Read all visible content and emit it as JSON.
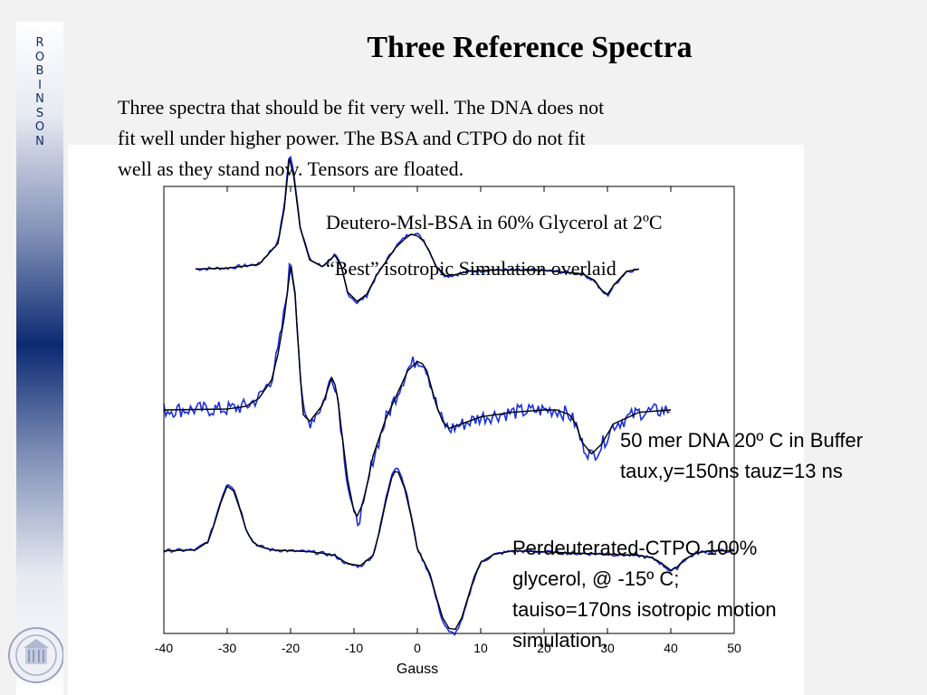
{
  "slide": {
    "title": "Three Reference Spectra",
    "side_letters": [
      "R",
      "O",
      "B",
      "I",
      "N",
      "S",
      "O",
      "N"
    ],
    "body_lines": [
      "Three spectra that should be fit very well.  The DNA does not",
      "fit well under higher power.  The BSA and CTPO do not fit",
      "well as they stand now.  Tensors are floated."
    ]
  },
  "annotations": {
    "bsa_line1": "Deutero-Msl-BSA in 60% Glycerol at 2ºC",
    "bsa_line2": "“Best” isotropic Simulation overlaid",
    "dna_line1": "50 mer DNA 20º C in Buffer",
    "dna_line2": "taux,y=150ns tauz=13 ns",
    "ctpo_line1": "Perdeuterated-CTPO 100%",
    "ctpo_line2": "glycerol,   @ -15º C;",
    "ctpo_line3": "tauiso=170ns isotropic motion",
    "ctpo_line4": "simulation."
  },
  "colors": {
    "experimental": "#1a2ee0",
    "simulation": "#000000",
    "sidebar_dark": "#0c2a72"
  },
  "chart_data": {
    "type": "line",
    "xlabel": "Gauss",
    "ylabel": "",
    "xlim": [
      -40,
      50
    ],
    "ylim": [
      -5.6,
      3.6
    ],
    "xticks": [
      -40,
      -30,
      -20,
      -10,
      0,
      10,
      20,
      30,
      40,
      50
    ],
    "grid": false,
    "series": [
      {
        "x": [
          -35,
          -30,
          -25,
          -22,
          -21,
          -20.2,
          -19.5,
          -18.5,
          -17,
          -15,
          -13,
          -12,
          -11,
          -9.5,
          -8,
          -6.5,
          -5,
          -3.5,
          -2,
          -1,
          0,
          1,
          2,
          3,
          4.5,
          6,
          8,
          12,
          20,
          26,
          28,
          29,
          30,
          31,
          33,
          35
        ],
        "y": [
          0,
          0.02,
          0.1,
          0.55,
          1.3,
          2.4,
          2.0,
          0.9,
          0.2,
          0.05,
          0.3,
          0.05,
          -0.5,
          -0.7,
          -0.55,
          -0.15,
          0.15,
          0.45,
          0.65,
          0.75,
          0.72,
          0.6,
          0.35,
          0.05,
          -0.15,
          -0.12,
          -0.05,
          -0.02,
          -0.03,
          -0.1,
          -0.25,
          -0.45,
          -0.55,
          -0.35,
          -0.05,
          0
        ]
      },
      {
        "x": [
          -40,
          -30,
          -27,
          -25,
          -23,
          -22,
          -21,
          -20,
          -19.3,
          -18.5,
          -18,
          -17,
          -15,
          -14,
          -13.5,
          -13,
          -12.5,
          -12,
          -11,
          -10,
          -9.5,
          -8.5,
          -7,
          -5,
          -3,
          -1.5,
          0,
          0.8,
          1.5,
          2,
          3,
          4,
          5,
          7,
          10,
          15,
          20,
          22,
          24,
          25,
          26,
          27.5,
          29,
          31,
          35,
          40
        ],
        "y": [
          0,
          0.02,
          0.08,
          0.25,
          0.65,
          1.2,
          2.0,
          3.1,
          2.5,
          0.8,
          -0.1,
          -0.25,
          0.1,
          0.5,
          0.7,
          0.55,
          0.2,
          -0.4,
          -1.5,
          -2.2,
          -2.3,
          -2.0,
          -1.0,
          -0.2,
          0.4,
          0.85,
          1.05,
          1.0,
          0.85,
          0.6,
          0.1,
          -0.25,
          -0.4,
          -0.3,
          -0.15,
          -0.05,
          0,
          0,
          -0.1,
          -0.3,
          -0.7,
          -0.95,
          -0.75,
          -0.3,
          -0.05,
          0
        ]
      },
      {
        "x": [
          -40,
          -35,
          -33,
          -32,
          -31,
          -30,
          -29,
          -28,
          -27,
          -26,
          -25,
          -23,
          -20,
          -17,
          -15,
          -13,
          -11,
          -9,
          -7,
          -6,
          -5,
          -4,
          -3.5,
          -3,
          -2,
          -1,
          0,
          2,
          3,
          4,
          5,
          6,
          7,
          8,
          9,
          10,
          12,
          15,
          20,
          25,
          30,
          35,
          37,
          38,
          39,
          40,
          41,
          42,
          44,
          46,
          50
        ],
        "y": [
          0,
          0.02,
          0.2,
          0.6,
          1.05,
          1.4,
          1.3,
          0.9,
          0.45,
          0.2,
          0.1,
          0.02,
          0,
          -0.02,
          -0.05,
          -0.1,
          -0.28,
          -0.32,
          -0.1,
          0.4,
          1.05,
          1.6,
          1.72,
          1.7,
          1.35,
          0.75,
          0.05,
          -0.5,
          -1.0,
          -1.45,
          -1.68,
          -1.7,
          -1.45,
          -1.0,
          -0.55,
          -0.25,
          -0.08,
          0,
          -0.02,
          -0.05,
          -0.07,
          -0.1,
          -0.15,
          -0.22,
          -0.32,
          -0.42,
          -0.35,
          -0.2,
          -0.05,
          0,
          0
        ]
      }
    ]
  }
}
